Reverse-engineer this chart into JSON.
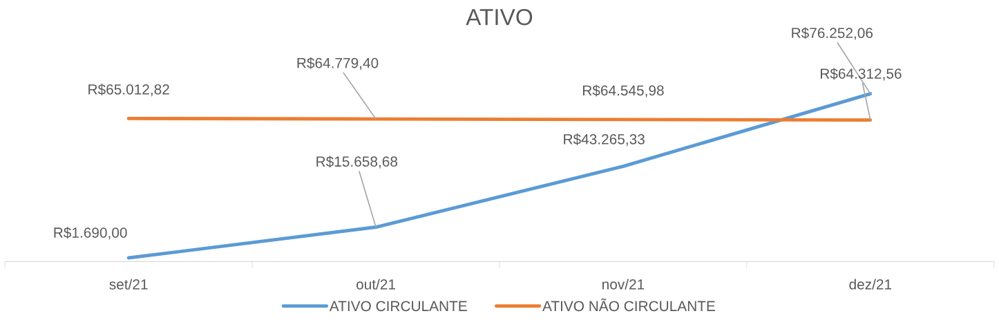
{
  "chart_data": {
    "type": "line",
    "title": "ATIVO",
    "categories": [
      "set/21",
      "out/21",
      "nov/21",
      "dez/21"
    ],
    "series": [
      {
        "name": "ATIVO CIRCULANTE",
        "color": "#5b9bd5",
        "values": [
          1690.0,
          15658.68,
          43265.33,
          76252.06
        ],
        "value_labels": [
          "R$1.690,00",
          "R$15.658,68",
          "R$43.265,33",
          "R$76.252,06"
        ]
      },
      {
        "name": "ATIVO NÃO CIRCULANTE",
        "color": "#ed7d31",
        "values": [
          65012.82,
          64779.4,
          64545.98,
          64312.56
        ],
        "value_labels": [
          "R$65.012,82",
          "R$64.779,40",
          "R$64.545,98",
          "R$64.312,56"
        ]
      }
    ],
    "legend": "bottom",
    "grid": false,
    "marker": "none",
    "line_style": "solid",
    "tick_labels": "x"
  }
}
